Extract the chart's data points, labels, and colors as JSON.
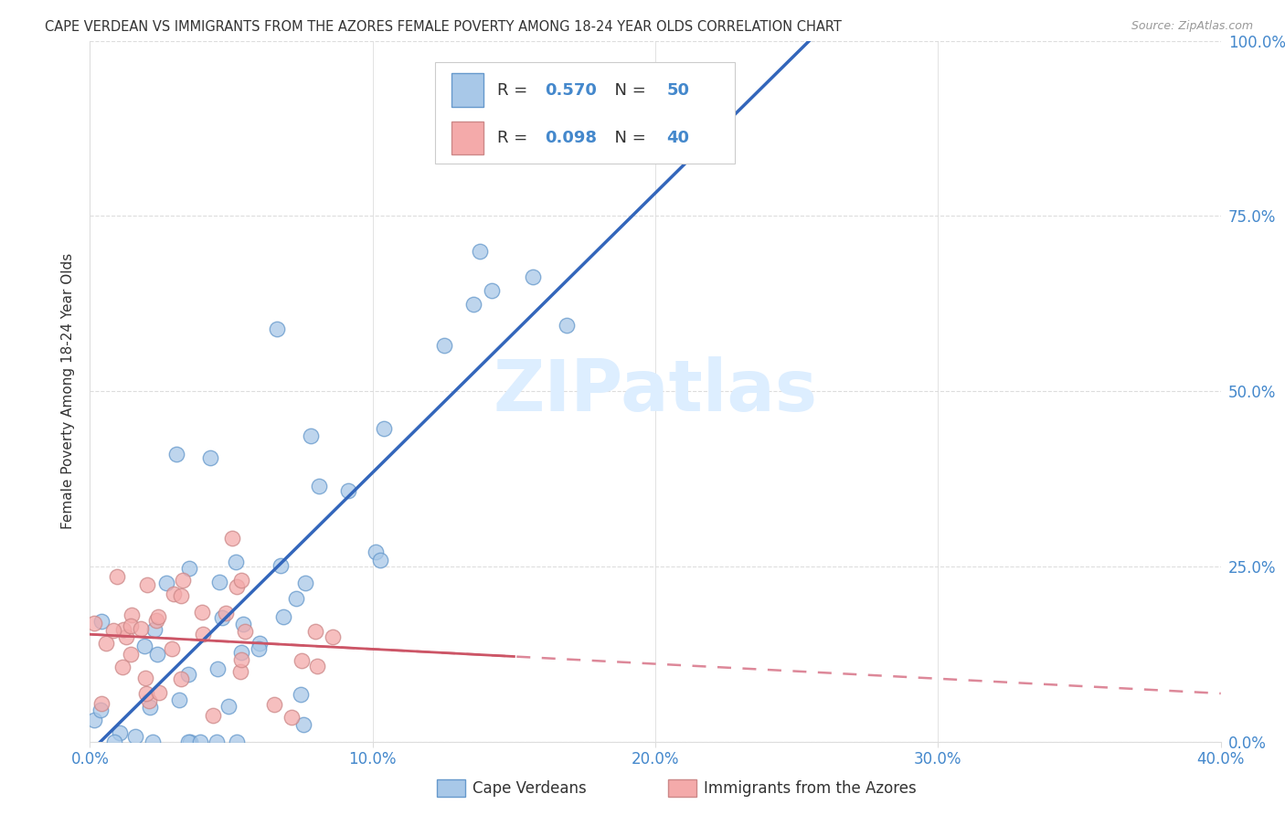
{
  "title": "CAPE VERDEAN VS IMMIGRANTS FROM THE AZORES FEMALE POVERTY AMONG 18-24 YEAR OLDS CORRELATION CHART",
  "source": "Source: ZipAtlas.com",
  "ylabel_left": "Female Poverty Among 18-24 Year Olds",
  "legend_label1": "Cape Verdeans",
  "legend_label2": "Immigrants from the Azores",
  "blue_R": 0.57,
  "blue_N": 50,
  "pink_R": 0.098,
  "pink_N": 40,
  "blue_color": "#a8c8e8",
  "pink_color": "#f4aaaa",
  "blue_edge_color": "#6699cc",
  "pink_edge_color": "#cc8888",
  "blue_line_color": "#3366bb",
  "pink_line_color": "#cc5566",
  "pink_dash_color": "#dd8899",
  "label_color": "#4488cc",
  "text_color": "#333333",
  "source_color": "#999999",
  "grid_color": "#dddddd",
  "watermark_color": "#ddeeff",
  "background_color": "#ffffff",
  "watermark": "ZIPatlas",
  "xmin": 0.0,
  "xmax": 40.0,
  "ymin": 0.0,
  "ymax": 100.0,
  "x_ticks": [
    0,
    10,
    20,
    30,
    40
  ],
  "y_ticks": [
    0,
    25,
    50,
    75,
    100
  ]
}
